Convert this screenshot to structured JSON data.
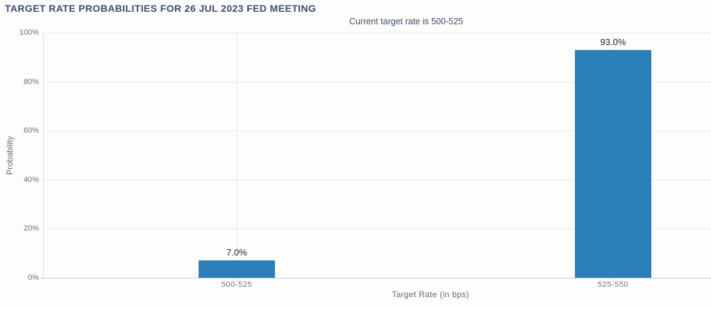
{
  "chart_data": {
    "type": "bar",
    "title": "TARGET RATE PROBABILITIES FOR 26 JUL 2023 FED MEETING",
    "subtitle": "Current target rate is 500-525",
    "xlabel": "Target Rate (in bps)",
    "ylabel": "Probability",
    "categories": [
      "500-525",
      "525-550"
    ],
    "values": [
      7.0,
      93.0
    ],
    "value_labels": [
      "7.0%",
      "93.0%"
    ],
    "yticks": [
      0,
      20,
      40,
      60,
      80,
      100
    ],
    "ytick_labels": [
      "0%",
      "20%",
      "40%",
      "60%",
      "80%",
      "100%"
    ],
    "ylim": [
      0,
      100
    ],
    "grid": true,
    "legend": false,
    "colors": {
      "bar": "#2a7fb8",
      "title_text": "#3a4b70",
      "axis_text": "#6b6b6b",
      "gridline": "#e9e9e9",
      "axis_line": "#c9c9c9",
      "background": "#fdfdfc"
    }
  }
}
